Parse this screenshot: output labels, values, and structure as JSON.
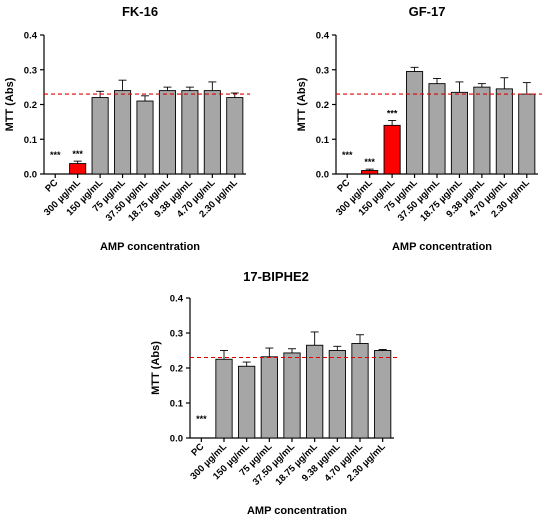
{
  "colors": {
    "bar_default": "#a6a6a6",
    "bar_highlight": "#ff0000",
    "reference_line": "#e00000",
    "axis": "#000000"
  },
  "chart_data": [
    {
      "type": "bar",
      "title": "FK-16",
      "xlabel": "AMP concentration",
      "ylabel": "MTT (Abs)",
      "ylim": [
        0,
        0.4
      ],
      "yticks": [
        "0.0",
        "0.1",
        "0.2",
        "0.3",
        "0.4"
      ],
      "categories": [
        "PC",
        "300 µg/mL",
        "150 µg/mL",
        "75 µg/mL",
        "37.50 µg/mL",
        "18.75 µg/mL",
        "9.38 µg/mL",
        "4.70 µg/mL",
        "2.30 µg/mL"
      ],
      "values": [
        0.0,
        0.03,
        0.22,
        0.24,
        0.21,
        0.24,
        0.24,
        0.24,
        0.22
      ],
      "errors": [
        0.0,
        0.007,
        0.018,
        0.03,
        0.015,
        0.01,
        0.01,
        0.025,
        0.013
      ],
      "highlight": [
        false,
        true,
        false,
        false,
        false,
        false,
        false,
        false,
        false
      ],
      "significance": [
        "***",
        "***",
        "",
        "",
        "",
        "",
        "",
        "",
        ""
      ],
      "reference_line": 0.23
    },
    {
      "type": "bar",
      "title": "GF-17",
      "xlabel": "AMP concentration",
      "ylabel": "MTT (Abs)",
      "ylim": [
        0,
        0.4
      ],
      "yticks": [
        "0.0",
        "0.1",
        "0.2",
        "0.3",
        "0.4"
      ],
      "categories": [
        "PC",
        "300 µg/mL",
        "150 µg/mL",
        "75 µg/mL",
        "37.50 µg/mL",
        "18.75 µg/mL",
        "9.38 µg/mL",
        "4.70 µg/mL",
        "2.30 µg/mL"
      ],
      "values": [
        0.0,
        0.01,
        0.14,
        0.295,
        0.26,
        0.235,
        0.25,
        0.245,
        0.23
      ],
      "errors": [
        0.0,
        0.004,
        0.014,
        0.012,
        0.015,
        0.03,
        0.01,
        0.032,
        0.033
      ],
      "highlight": [
        false,
        true,
        true,
        false,
        false,
        false,
        false,
        false,
        false
      ],
      "significance": [
        "***",
        "***",
        "***",
        "",
        "",
        "",
        "",
        "",
        ""
      ],
      "reference_line": 0.23
    },
    {
      "type": "bar",
      "title": "17-BIPHE2",
      "xlabel": "AMP concentration",
      "ylabel": "MTT (Abs)",
      "ylim": [
        0,
        0.4
      ],
      "yticks": [
        "0.0",
        "0.1",
        "0.2",
        "0.3",
        "0.4"
      ],
      "categories": [
        "PC",
        "300 µg/mL",
        "150 µg/mL",
        "75 µg/mL",
        "37.50 µg/mL",
        "18.75 µg/mL",
        "9.38 µg/mL",
        "4.70 µg/mL",
        "2.30 µg/mL"
      ],
      "values": [
        0.0,
        0.225,
        0.205,
        0.232,
        0.243,
        0.265,
        0.25,
        0.27,
        0.25
      ],
      "errors": [
        0.0,
        0.025,
        0.012,
        0.025,
        0.012,
        0.038,
        0.012,
        0.025,
        0.003
      ],
      "highlight": [
        false,
        false,
        false,
        false,
        false,
        false,
        false,
        false,
        false
      ],
      "significance": [
        "***",
        "",
        "",
        "",
        "",
        "",
        "",
        "",
        ""
      ],
      "reference_line": 0.23
    }
  ]
}
